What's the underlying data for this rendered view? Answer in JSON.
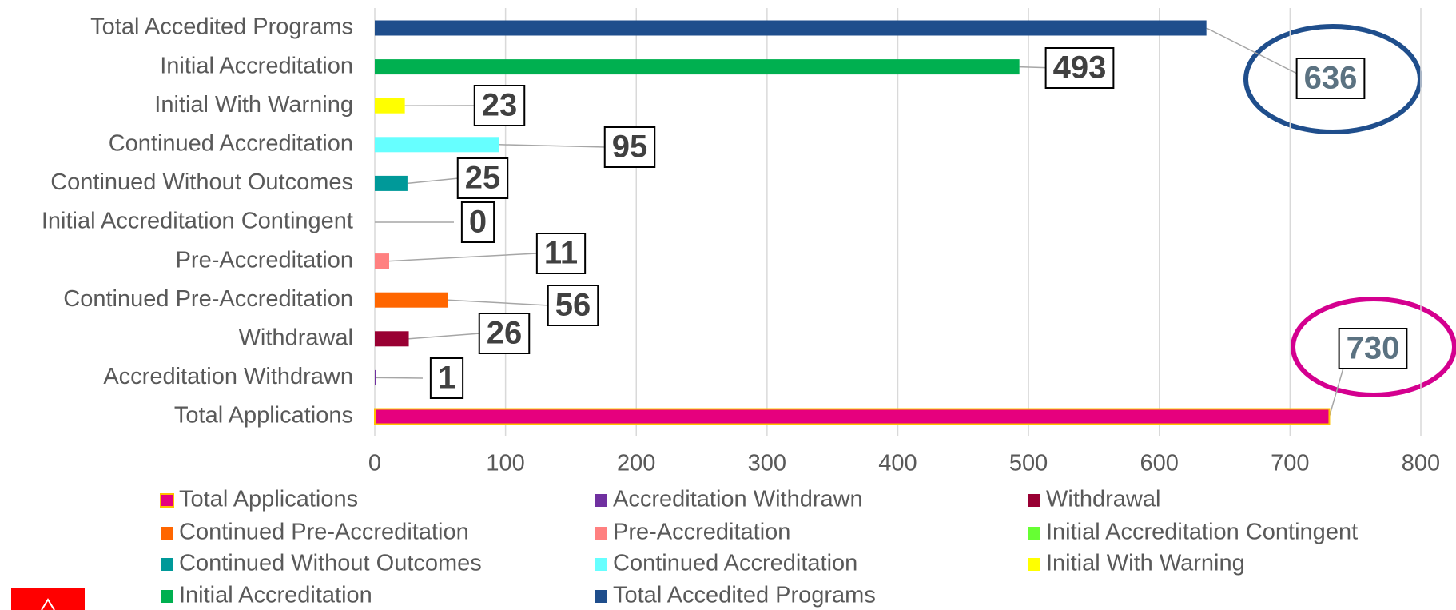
{
  "chart_data": {
    "type": "bar",
    "categories": [
      "Total Accedited Programs",
      "Initial Accreditation",
      "Initial With Warning",
      "Continued Accreditation",
      "Continued Without Outcomes",
      "Initial Accreditation Contingent",
      "Pre-Accreditation",
      "Continued Pre-Accreditation",
      "Withdrawal",
      "Accreditation Withdrawn",
      "Total Applications"
    ],
    "values": [
      636,
      493,
      23,
      95,
      25,
      0,
      11,
      56,
      26,
      1,
      730
    ],
    "colors": [
      "#1f4e8c",
      "#00b050",
      "#ffff00",
      "#66ffff",
      "#009999",
      "#66ff33",
      "#ff8080",
      "#ff6600",
      "#990033",
      "#7030a0",
      "#e6007e"
    ],
    "xlim": [
      0,
      800
    ],
    "xticks": [
      0,
      100,
      200,
      300,
      400,
      500,
      600,
      700,
      800
    ],
    "grid": true,
    "legend": "bottom"
  }
}
